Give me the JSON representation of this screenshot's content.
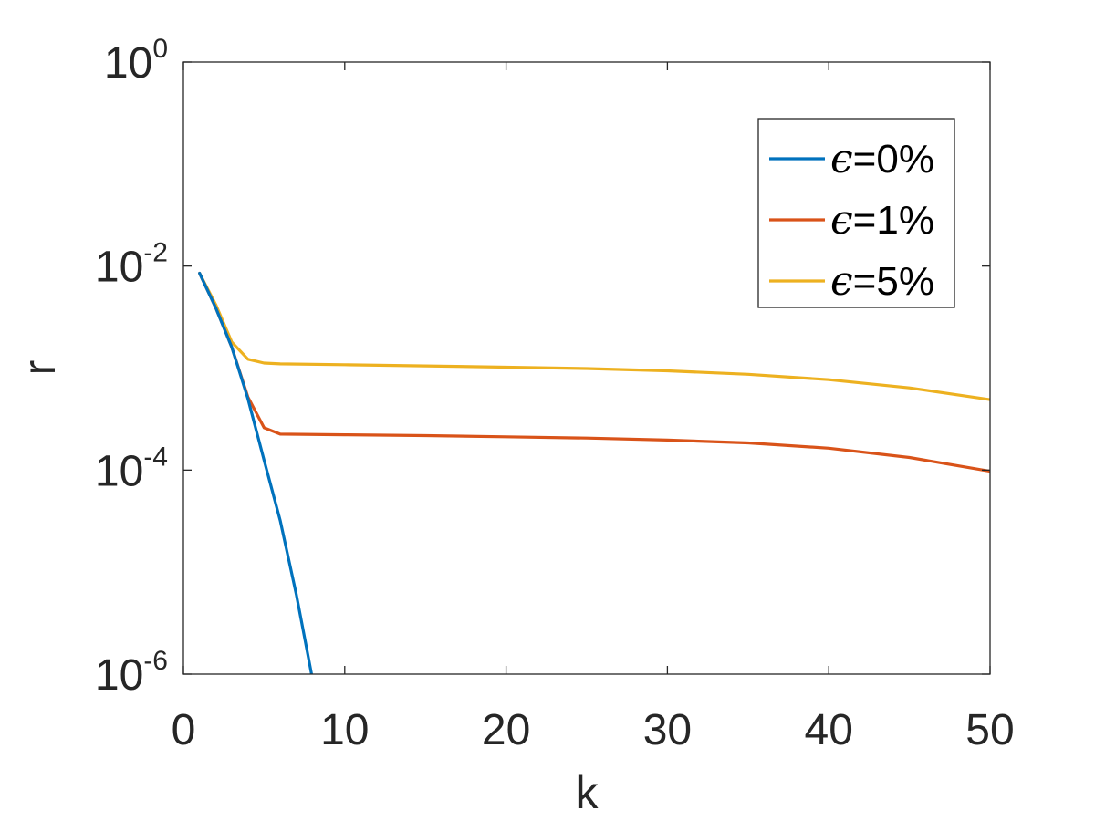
{
  "chart_data": {
    "type": "line",
    "xlabel": "k",
    "ylabel": "r",
    "xlim": [
      0,
      50
    ],
    "ylim": [
      1e-06,
      1
    ],
    "yscale": "log",
    "grid": false,
    "legend_position": "top-right",
    "xticks": [
      {
        "label": "0",
        "value": 0
      },
      {
        "label": "10",
        "value": 10
      },
      {
        "label": "20",
        "value": 20
      },
      {
        "label": "30",
        "value": 30
      },
      {
        "label": "40",
        "value": 40
      },
      {
        "label": "50",
        "value": 50
      }
    ],
    "yticks": [
      {
        "base": "10",
        "exp": "0",
        "value": 1
      },
      {
        "base": "10",
        "exp": "-2",
        "value": 0.01
      },
      {
        "base": "10",
        "exp": "-4",
        "value": 0.0001
      },
      {
        "base": "10",
        "exp": "-6",
        "value": 1e-06
      }
    ],
    "series": [
      {
        "name": "=0%",
        "symbol": "ϵ",
        "color": "#0072BD",
        "x": [
          1,
          2,
          3,
          4,
          5,
          6,
          7,
          8,
          9
        ],
        "y": [
          0.0085,
          0.0039,
          0.0016,
          0.0005,
          0.000125,
          3.2e-05,
          6e-06,
          9e-07,
          1e-07
        ]
      },
      {
        "name": "=1%",
        "symbol": "ϵ",
        "color": "#D95319",
        "x": [
          1,
          2,
          3,
          4,
          5,
          6,
          10,
          15,
          20,
          25,
          30,
          35,
          40,
          45,
          50
        ],
        "y": [
          0.0085,
          0.0039,
          0.0016,
          0.00052,
          0.00026,
          0.000225,
          0.000222,
          0.000218,
          0.000212,
          0.000206,
          0.000197,
          0.000185,
          0.000164,
          0.000133,
          9.75e-05
        ]
      },
      {
        "name": "=5%",
        "symbol": "ϵ",
        "color": "#EDB120",
        "x": [
          1,
          2,
          3,
          4,
          5,
          6,
          10,
          15,
          20,
          25,
          30,
          35,
          40,
          45,
          50
        ],
        "y": [
          0.0085,
          0.0042,
          0.0018,
          0.00122,
          0.00112,
          0.0011,
          0.00108,
          0.00105,
          0.00102,
          0.00099,
          0.00094,
          0.00087,
          0.00077,
          0.00064,
          0.00049
        ]
      }
    ]
  }
}
